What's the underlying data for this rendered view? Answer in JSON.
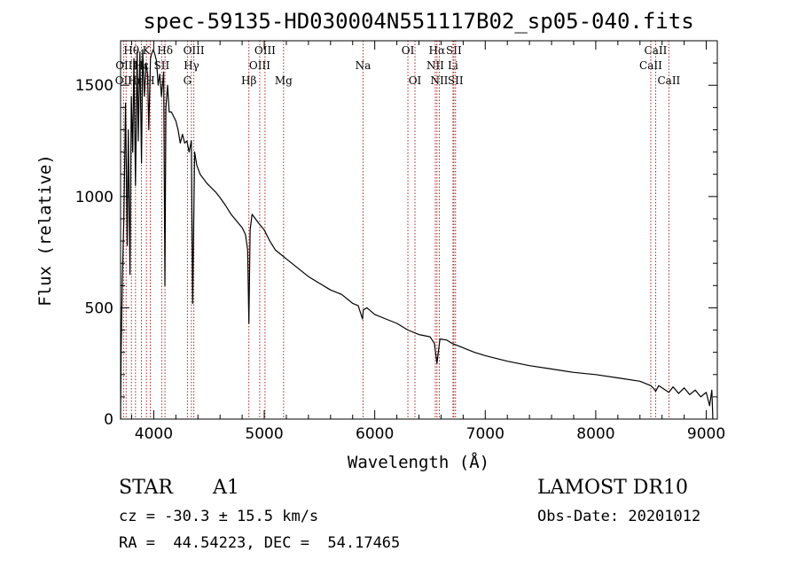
{
  "chart_data": {
    "type": "line",
    "title": "spec-59135-HD030004N551117B02_sp05-040.fits",
    "xlabel": "Wavelength (Å)",
    "ylabel": "Flux (relative)",
    "xlim": [
      3700,
      9100
    ],
    "ylim": [
      0,
      1700
    ],
    "x_ticks": [
      4000,
      5000,
      6000,
      7000,
      8000,
      9000
    ],
    "y_ticks": [
      0,
      500,
      1000,
      1500
    ],
    "grid": false,
    "series": [
      {
        "x": [
          3700,
          3705,
          3715,
          3730,
          3745,
          3760,
          3770,
          3785,
          3797,
          3810,
          3820,
          3835,
          3850,
          3860,
          3875,
          3889,
          3900,
          3915,
          3930,
          3945,
          3955,
          3970,
          3980,
          3995,
          4010,
          4025,
          4040,
          4055,
          4070,
          4090,
          4101,
          4110,
          4125,
          4140,
          4160,
          4180,
          4200,
          4220,
          4240,
          4260,
          4280,
          4300,
          4320,
          4340,
          4352,
          4370,
          4390,
          4420,
          4450,
          4480,
          4520,
          4560,
          4600,
          4650,
          4700,
          4750,
          4800,
          4830,
          4850,
          4861,
          4872,
          4890,
          4920,
          4950,
          5000,
          5050,
          5100,
          5150,
          5200,
          5300,
          5400,
          5500,
          5600,
          5700,
          5800,
          5850,
          5889,
          5896,
          5930,
          6000,
          6100,
          6200,
          6300,
          6400,
          6500,
          6540,
          6563,
          6590,
          6650,
          6700,
          6800,
          6900,
          7000,
          7200,
          7400,
          7600,
          7800,
          8000,
          8200,
          8400,
          8498,
          8520,
          8542,
          8570,
          8600,
          8662,
          8700,
          8750,
          8800,
          8850,
          8900,
          8950,
          9000,
          9030,
          9050,
          9060
        ],
        "values": [
          0,
          300,
          620,
          900,
          1420,
          780,
          1300,
          650,
          1450,
          1200,
          1620,
          1050,
          1650,
          1250,
          1650,
          1150,
          1660,
          1450,
          1600,
          1550,
          1300,
          1620,
          1640,
          1660,
          1640,
          1610,
          1500,
          1550,
          1450,
          1560,
          600,
          1400,
          1500,
          1380,
          1380,
          1360,
          1340,
          1300,
          1240,
          1280,
          1240,
          1250,
          1200,
          1250,
          520,
          1200,
          1140,
          1100,
          1080,
          1060,
          1040,
          1020,
          995,
          960,
          920,
          890,
          860,
          830,
          760,
          430,
          850,
          920,
          900,
          880,
          850,
          800,
          760,
          740,
          720,
          680,
          640,
          610,
          580,
          560,
          520,
          510,
          450,
          490,
          500,
          470,
          450,
          430,
          400,
          380,
          370,
          340,
          250,
          360,
          355,
          340,
          320,
          300,
          285,
          260,
          240,
          225,
          210,
          200,
          185,
          170,
          150,
          140,
          125,
          150,
          140,
          120,
          145,
          115,
          140,
          110,
          130,
          100,
          120,
          60,
          130,
          0
        ]
      }
    ],
    "line_marks": [
      {
        "label": "OII",
        "wavelength": 3727,
        "row": 3
      },
      {
        "label": "Hθ",
        "wavelength": 3798,
        "row": 1
      },
      {
        "label": "OIII",
        "wavelength": 3750,
        "row": 2
      },
      {
        "label": "Hη",
        "wavelength": 3835,
        "row": 3
      },
      {
        "label": "Hε",
        "wavelength": 3889,
        "row": 2
      },
      {
        "label": "K",
        "wavelength": 3934,
        "row": 1
      },
      {
        "label": "H",
        "wavelength": 3969,
        "row": 3
      },
      {
        "label": "SII",
        "wavelength": 4072,
        "row": 2
      },
      {
        "label": "Hδ",
        "wavelength": 4102,
        "row": 1
      },
      {
        "label": "OIII",
        "wavelength": 4363,
        "row": 1
      },
      {
        "label": "Hγ",
        "wavelength": 4341,
        "row": 2
      },
      {
        "label": "G",
        "wavelength": 4305,
        "row": 3
      },
      {
        "label": "Hβ",
        "wavelength": 4861,
        "row": 3
      },
      {
        "label": "OIII",
        "wavelength": 5007,
        "row": 1
      },
      {
        "label": "OIII",
        "wavelength": 4959,
        "row": 2
      },
      {
        "label": "Mg",
        "wavelength": 5175,
        "row": 3
      },
      {
        "label": "Na",
        "wavelength": 5894,
        "row": 2
      },
      {
        "label": "OI",
        "wavelength": 6300,
        "row": 1
      },
      {
        "label": "OI",
        "wavelength": 6364,
        "row": 3
      },
      {
        "label": "Hα",
        "wavelength": 6563,
        "row": 1
      },
      {
        "label": "NII",
        "wavelength": 6548,
        "row": 2
      },
      {
        "label": "NII",
        "wavelength": 6584,
        "row": 3
      },
      {
        "label": "SII",
        "wavelength": 6716,
        "row": 1
      },
      {
        "label": "Li",
        "wavelength": 6708,
        "row": 2
      },
      {
        "label": "SII",
        "wavelength": 6731,
        "row": 3
      },
      {
        "label": "CaII",
        "wavelength": 8542,
        "row": 1
      },
      {
        "label": "CaII",
        "wavelength": 8498,
        "row": 2
      },
      {
        "label": "CaII",
        "wavelength": 8662,
        "row": 3
      }
    ]
  },
  "info": {
    "class": "STAR",
    "subclass": "A1",
    "survey": "LAMOST DR10",
    "cz": "cz = -30.3 ± 15.5 km/s",
    "obs_date": "Obs-Date: 20201012",
    "radec": "RA =  44.54223, DEC =  54.17465"
  },
  "colors": {
    "line": "#000000",
    "marker": "#b22222",
    "axes": "#000000"
  }
}
